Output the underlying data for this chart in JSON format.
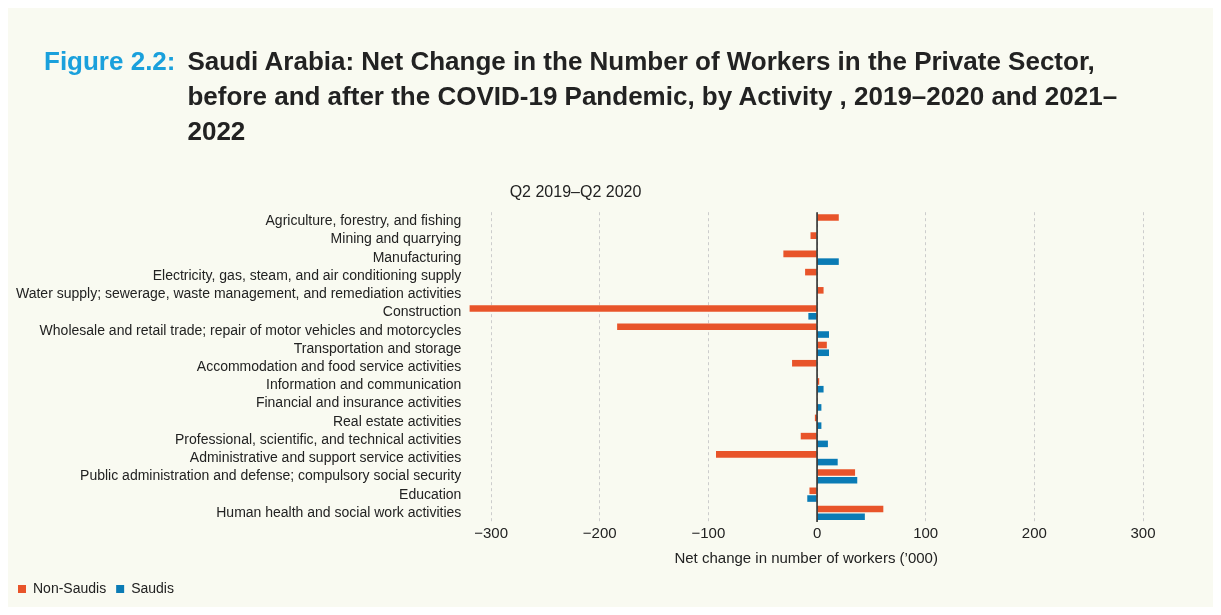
{
  "chart_data": {
    "type": "bar",
    "orientation": "horizontal",
    "title": "Figure 2.2: Saudi Arabia: Net Change in the Number of Workers in the Private Sector, before and after the COVID-19 Pandemic, by Activity , 2019–2020 and 2021–2022",
    "subtitle": "Q2 2019–Q2 2020",
    "xlabel": "Net change in number of workers (’000)",
    "categories": [
      "Agriculture, forestry, and fishing",
      "Mining and quarrying",
      "Manufacturing",
      "Electricity, gas, steam, and air conditioning supply",
      "Water supply; sewerage, waste management, and remediation activities",
      "Construction",
      "Wholesale and retail trade; repair of motor vehicles and motorcycles",
      "Transportation and storage",
      "Accommodation and food service activities",
      "Information and communication",
      "Financial and insurance activities",
      "Real estate activities",
      "Professional, scientific, and technical activities",
      "Administrative and support service activities",
      "Public administration and defense; compulsory social security",
      "Education",
      "Human health and social work activities"
    ],
    "series": [
      {
        "name": "Non-Saudis",
        "color": "#e8542a",
        "values": [
          20,
          -6,
          -31,
          -11,
          6,
          -320,
          -184,
          9,
          -23,
          2,
          0,
          -2,
          -15,
          -93,
          35,
          -7,
          61
        ]
      },
      {
        "name": "Saudis",
        "color": "#0a7bb5",
        "values": [
          null,
          0,
          20,
          null,
          null,
          -8,
          11,
          11,
          0,
          6,
          4,
          4,
          10,
          19,
          37,
          -9,
          44
        ]
      }
    ],
    "xlim": [
      -320,
      300
    ],
    "xticks": [
      -300,
      -200,
      -100,
      0,
      100,
      200,
      300
    ],
    "grid": "x",
    "legend": "bottom left"
  }
}
